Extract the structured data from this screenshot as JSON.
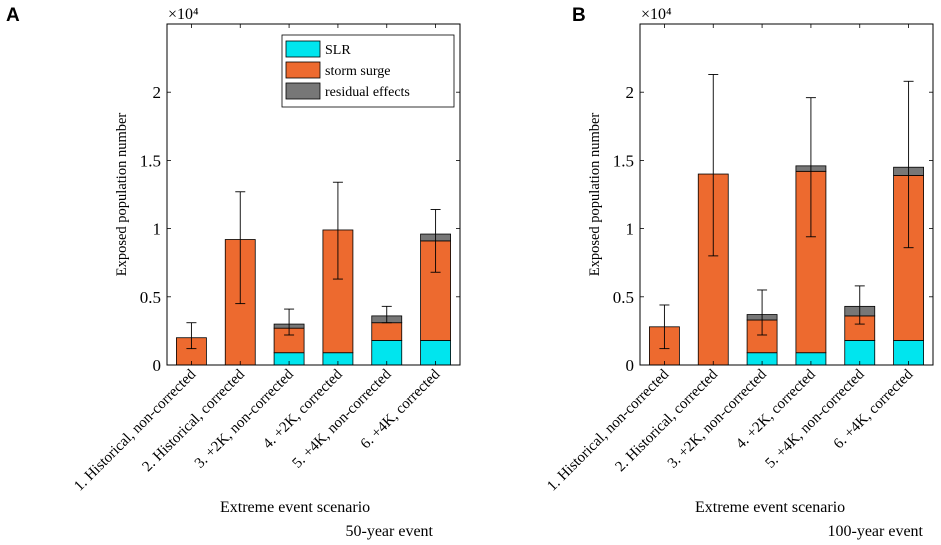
{
  "chart_data": [
    {
      "type": "bar",
      "stacked": true,
      "panel_label": "A",
      "subtitle": "50-year event",
      "xlabel": "Extreme event scenario",
      "ylabel": "Exposed population number",
      "exponent_label": "×10⁴",
      "ylim": [
        0,
        2.5
      ],
      "yticks": [
        "0",
        "0.5",
        "1",
        "1.5",
        "2"
      ],
      "categories": [
        "1. Historical, non-corrected",
        "2. Historical, corrected",
        "3. +2K, non-corrected",
        "4. +2K, corrected",
        "5. +4K, non-corrected",
        "6. +4K, corrected"
      ],
      "series": [
        {
          "name": "SLR",
          "color": "#00e5ee",
          "values": [
            0,
            0,
            0.09,
            0.09,
            0.18,
            0.18
          ]
        },
        {
          "name": "storm surge",
          "color": "#ed6a2f",
          "values": [
            0.2,
            0.92,
            0.18,
            0.9,
            0.13,
            0.73
          ]
        },
        {
          "name": "residual effects",
          "color": "#777777",
          "values": [
            0,
            0,
            0.03,
            0,
            0.05,
            0.05
          ]
        }
      ],
      "error_bars": [
        {
          "low": 0.12,
          "high": 0.31
        },
        {
          "low": 0.45,
          "high": 1.27
        },
        {
          "low": 0.22,
          "high": 0.41
        },
        {
          "low": 0.63,
          "high": 1.34
        },
        {
          "low": 0.31,
          "high": 0.43
        },
        {
          "low": 0.68,
          "high": 1.14
        }
      ]
    },
    {
      "type": "bar",
      "stacked": true,
      "panel_label": "B",
      "subtitle": "100-year event",
      "xlabel": "Extreme event scenario",
      "ylabel": "Exposed population number",
      "exponent_label": "×10⁴",
      "ylim": [
        0,
        2.5
      ],
      "yticks": [
        "0",
        "0.5",
        "1",
        "1.5",
        "2"
      ],
      "categories": [
        "1. Historical, non-corrected",
        "2. Historical, corrected",
        "3. +2K, non-corrected",
        "4. +2K, corrected",
        "5. +4K, non-corrected",
        "6. +4K, corrected"
      ],
      "series": [
        {
          "name": "SLR",
          "color": "#00e5ee",
          "values": [
            0,
            0,
            0.09,
            0.09,
            0.18,
            0.18
          ]
        },
        {
          "name": "storm surge",
          "color": "#ed6a2f",
          "values": [
            0.28,
            1.4,
            0.24,
            1.33,
            0.18,
            1.21
          ]
        },
        {
          "name": "residual effects",
          "color": "#777777",
          "values": [
            0,
            0,
            0.04,
            0.04,
            0.07,
            0.06
          ]
        }
      ],
      "error_bars": [
        {
          "low": 0.12,
          "high": 0.44
        },
        {
          "low": 0.8,
          "high": 2.13
        },
        {
          "low": 0.22,
          "high": 0.55
        },
        {
          "low": 0.94,
          "high": 1.96
        },
        {
          "low": 0.3,
          "high": 0.58
        },
        {
          "low": 0.86,
          "high": 2.08
        }
      ]
    }
  ]
}
